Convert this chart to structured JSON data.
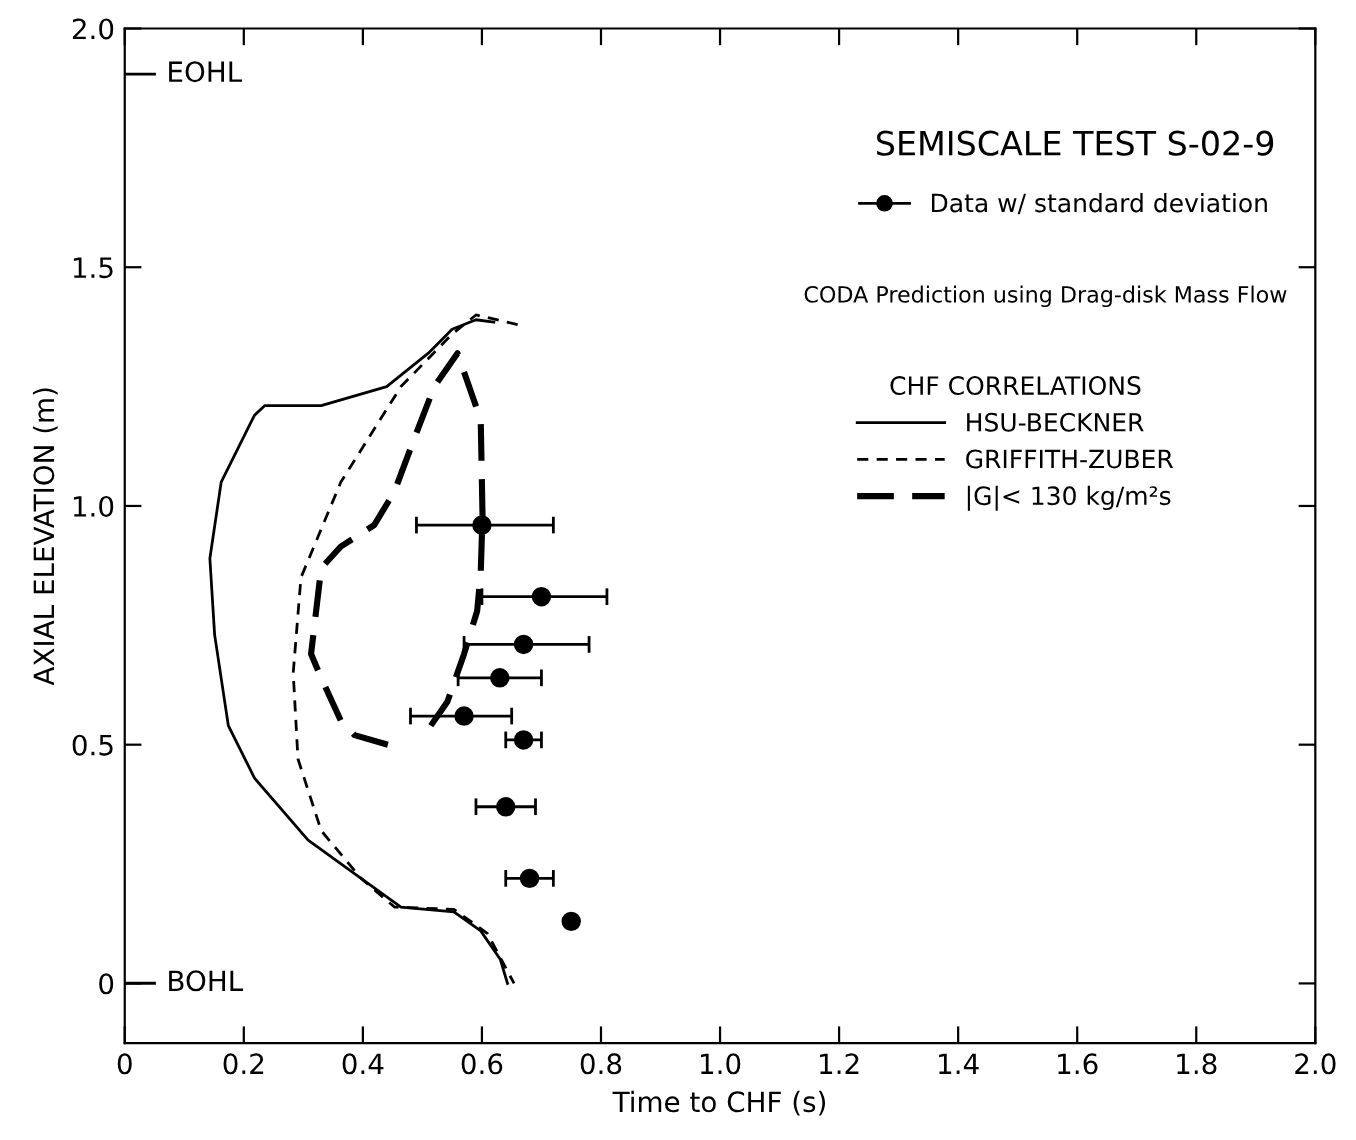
{
  "chart_data": {
    "type": "line",
    "title": "SEMISCALE TEST S-02-9",
    "xlabel": "Time to CHF (s)",
    "ylabel": "AXIAL ELEVATION (m)",
    "legend_title": "CHF CORRELATIONS",
    "xlim": [
      0,
      2.0
    ],
    "ylim": [
      -0.125,
      2.0
    ],
    "xticks": [
      0,
      0.2,
      0.4,
      0.6,
      0.8,
      {
        "value": 1.0,
        "label": "1.0"
      },
      1.2,
      1.4,
      1.6,
      1.8,
      {
        "value": 2.0,
        "label": "2.0"
      }
    ],
    "yticks": [
      0,
      0.5,
      {
        "value": 1.0,
        "label": "1.0"
      },
      1.5,
      {
        "value": 2.0,
        "label": "2.0"
      }
    ],
    "grid": false,
    "legend": "top right",
    "annotations": [
      "CODA Prediction using Drag-disk Mass Flow",
      "EOHL",
      "BOHL"
    ],
    "series": [
      {
        "type": "scatter",
        "name": "Data w/ standard deviation",
        "color": "#000000",
        "marker": "circle",
        "x": [
          0.6,
          0.7,
          0.67,
          0.63,
          0.57,
          0.67,
          0.64,
          0.68,
          0.75
        ],
        "values": [
          0.96,
          0.81,
          0.71,
          0.64,
          0.56,
          0.51,
          0.37,
          0.22,
          0.13
        ],
        "xerrors": [
          [
            0.49,
            0.72
          ],
          [
            0.6,
            0.81
          ],
          [
            0.57,
            0.78
          ],
          [
            0.56,
            0.7
          ],
          [
            0.48,
            0.65
          ],
          [
            0.64,
            0.7
          ],
          [
            0.59,
            0.69
          ],
          [
            0.64,
            0.72
          ],
          null
        ]
      },
      {
        "name": "HSU-BECKNER",
        "color": "#000000",
        "line_style": "solid",
        "marker": "none",
        "x": [
          0.62,
          0.59,
          0.55,
          0.51,
          0.44,
          0.33,
          0.235,
          0.218,
          0.162,
          0.143,
          0.151,
          0.174,
          0.218,
          0.308,
          0.397,
          0.464,
          0.553,
          0.598,
          0.631,
          0.643
        ],
        "values": [
          1.385,
          1.39,
          1.37,
          1.32,
          1.25,
          1.21,
          1.21,
          1.19,
          1.05,
          0.89,
          0.73,
          0.54,
          0.43,
          0.3,
          0.22,
          0.16,
          0.15,
          0.11,
          0.05,
          0.0
        ]
      },
      {
        "name": "GRIFFITH-ZUBER",
        "color": "#000000",
        "line_style": "dashed",
        "marker": "none",
        "x": [
          0.66,
          0.59,
          0.55,
          0.464,
          0.363,
          0.296,
          0.283,
          0.291,
          0.33,
          0.397,
          0.453,
          0.553,
          0.609,
          0.654
        ],
        "values": [
          1.38,
          1.4,
          1.36,
          1.25,
          1.05,
          0.85,
          0.65,
          0.47,
          0.32,
          0.22,
          0.16,
          0.155,
          0.105,
          0.0
        ]
      },
      {
        "name": "|G|< 130 kg/m²s",
        "color": "#000000",
        "line_style": "dashed",
        "marker": "none",
        "x": [
          0.442,
          0.386,
          0.363,
          0.33,
          0.313,
          0.33,
          0.363,
          0.419,
          0.453,
          0.486,
          0.52,
          0.559,
          0.598,
          0.601,
          0.598,
          0.592,
          0.57,
          0.542,
          0.503
        ],
        "values": [
          0.5,
          0.52,
          0.55,
          0.64,
          0.69,
          0.87,
          0.915,
          0.96,
          1.03,
          1.14,
          1.25,
          1.32,
          1.18,
          0.98,
          0.86,
          0.78,
          0.69,
          0.59,
          0.52
        ]
      }
    ]
  }
}
